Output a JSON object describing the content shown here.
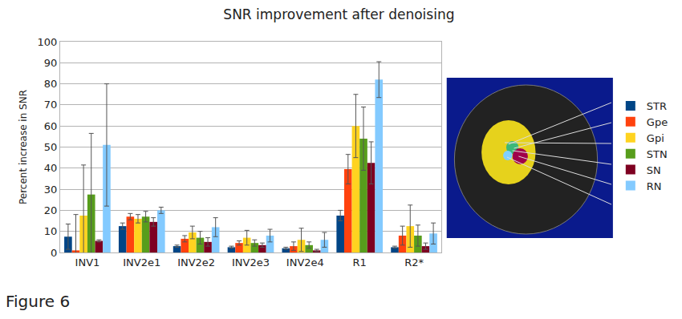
{
  "chart_data": {
    "type": "bar",
    "title": "SNR improvement after denoising",
    "y_label": "Percent increase in SNR",
    "categories": [
      "INV1",
      "INV2e1",
      "INV2e2",
      "INV2e3",
      "INV2e4",
      "R1",
      "R2*"
    ],
    "series": [
      {
        "name": "STR",
        "color": "#004586",
        "values": [
          7.5,
          12.5,
          3,
          2.5,
          2,
          17.5,
          2.5
        ],
        "errors": [
          6,
          1.5,
          0.5,
          0.5,
          0.5,
          2.5,
          0.5
        ]
      },
      {
        "name": "Gpe",
        "color": "#ff420e",
        "values": [
          1,
          17,
          6.5,
          4.5,
          3,
          39.5,
          8
        ],
        "errors": [
          17,
          1.5,
          1.5,
          1,
          2,
          7,
          4.5
        ]
      },
      {
        "name": "Gpi",
        "color": "#ffd320",
        "values": [
          17.5,
          16,
          9.5,
          7,
          6,
          60,
          12.5
        ],
        "errors": [
          24,
          2,
          3,
          3.5,
          5.5,
          15,
          10
        ]
      },
      {
        "name": "STN",
        "color": "#579d1c",
        "values": [
          27.5,
          17,
          7,
          4.5,
          3.5,
          54,
          8
        ],
        "errors": [
          29,
          2.5,
          3,
          1.5,
          1.5,
          15,
          5
        ]
      },
      {
        "name": "SN",
        "color": "#7e0021",
        "values": [
          5.5,
          14.5,
          5,
          3.5,
          1,
          42.5,
          3
        ],
        "errors": [
          0.5,
          2,
          2,
          1,
          0.5,
          10,
          1.5
        ]
      },
      {
        "name": "RN",
        "color": "#83caff",
        "values": [
          51,
          20,
          12,
          8,
          6,
          82,
          9
        ],
        "errors": [
          29,
          1.5,
          4.5,
          3,
          3.5,
          8.5,
          5
        ]
      }
    ],
    "ylim": [
      0,
      100
    ],
    "yticks": [
      0,
      10,
      20,
      30,
      40,
      50,
      60,
      70,
      80,
      90,
      100
    ],
    "grid": true,
    "legend": "right",
    "annotations": [
      "Figure 6"
    ]
  }
}
